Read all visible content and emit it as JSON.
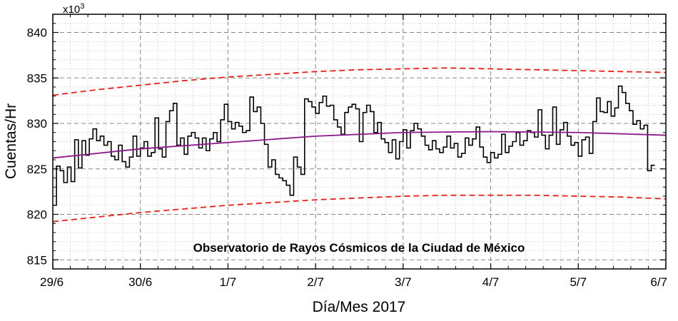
{
  "chart_data": {
    "type": "line",
    "xlabel": "Día/Mes 2017",
    "ylabel": "Cuentas/Hr",
    "y_multiplier_base": "x10",
    "y_multiplier_exp": "3",
    "annotation": "Observatorio de Rayos Cósmicos de la Ciudad de México",
    "x_start": "2017-06-29",
    "xlim": [
      "2017-06-29T00:00",
      "2017-07-06T00:00"
    ],
    "x_ticks": [
      "29/6",
      "30/6",
      "1/7",
      "2/7",
      "3/7",
      "4/7",
      "5/7",
      "6/7"
    ],
    "ylim": [
      814,
      842
    ],
    "y_ticks": [
      815,
      820,
      825,
      830,
      835,
      840
    ],
    "grid": true,
    "series": [
      {
        "style": "step",
        "color": "#000000",
        "x_step_hours": 1,
        "values": [
          821,
          825.3,
          824.8,
          823.5,
          825.2,
          823.6,
          828.2,
          825.1,
          828.1,
          826.5,
          828.3,
          829.4,
          828.1,
          828.6,
          827.6,
          828.0,
          826.4,
          826.0,
          827.6,
          825.8,
          825.2,
          826.3,
          828.6,
          826.4,
          827.3,
          828.0,
          826.4,
          826.8,
          830.6,
          827.2,
          826.3,
          830.2,
          831.4,
          832.2,
          827.6,
          828.4,
          826.6,
          828.6,
          829.0,
          828.4,
          827.3,
          828.4,
          827.0,
          828.3,
          829.0,
          828.0,
          830.4,
          832.1,
          830.2,
          829.4,
          830.1,
          829.7,
          829.0,
          829.2,
          832.9,
          831.3,
          831.8,
          830.0,
          827.7,
          825.2,
          826.0,
          824.4,
          824.0,
          823.7,
          823.2,
          822.1,
          826.3,
          825.2,
          824.4,
          832.7,
          832.4,
          831.8,
          831.1,
          832.3,
          833.0,
          831.9,
          832.0,
          830.4,
          829.6,
          828.8,
          831.2,
          831.8,
          832.1,
          831.6,
          828.0,
          831.2,
          832.0,
          831.3,
          829.0,
          830.1,
          828.3,
          827.9,
          826.8,
          828.2,
          826.1,
          828.0,
          829.3,
          827.3,
          829.2,
          830.0,
          829.4,
          828.6,
          827.6,
          827.1,
          828.1,
          827.2,
          826.8,
          827.4,
          828.6,
          827.3,
          827.8,
          826.3,
          826.7,
          828.4,
          827.6,
          828.3,
          829.6,
          827.4,
          826.3,
          825.7,
          826.8,
          826.2,
          826.6,
          828.8,
          826.8,
          827.5,
          828.0,
          829.0,
          827.6,
          828.1,
          829.2,
          829.0,
          828.5,
          831.5,
          828.7,
          827.2,
          828.7,
          831.8,
          827.7,
          829.3,
          830.1,
          828.6,
          827.6,
          827.9,
          826.4,
          828.2,
          828.5,
          826.7,
          830.2,
          832.8,
          831.3,
          831.2,
          832.4,
          830.8,
          831.7,
          834.1,
          833.4,
          832.2,
          831.4,
          829.9,
          830.3,
          829.4,
          829.8,
          824.8,
          825.4
        ]
      },
      {
        "style": "line",
        "color": "#8B1A8B",
        "x_days": [
          0,
          1,
          2,
          3,
          4,
          5,
          6,
          7
        ],
        "values": [
          826.2,
          827.2,
          827.9,
          828.6,
          829.0,
          829.1,
          829.0,
          828.7
        ]
      },
      {
        "style": "dashed",
        "color": "#E8201A",
        "x_days": [
          0,
          0.5,
          1,
          1.5,
          2,
          2.5,
          3,
          3.5,
          4,
          4.5,
          5,
          5.5,
          6,
          6.5,
          7
        ],
        "values": [
          833.1,
          833.7,
          834.2,
          834.7,
          835.1,
          835.4,
          835.7,
          835.9,
          836.0,
          836.1,
          836.0,
          835.9,
          835.8,
          835.7,
          835.6
        ]
      },
      {
        "style": "dashed",
        "color": "#E8201A",
        "x_days": [
          0,
          0.5,
          1,
          1.5,
          2,
          2.5,
          3,
          3.5,
          4,
          4.5,
          5,
          5.5,
          6,
          6.5,
          7
        ],
        "values": [
          819.2,
          819.7,
          820.2,
          820.6,
          821.0,
          821.3,
          821.6,
          821.8,
          822.0,
          822.1,
          822.1,
          822.1,
          822.0,
          821.9,
          821.7
        ]
      }
    ]
  }
}
